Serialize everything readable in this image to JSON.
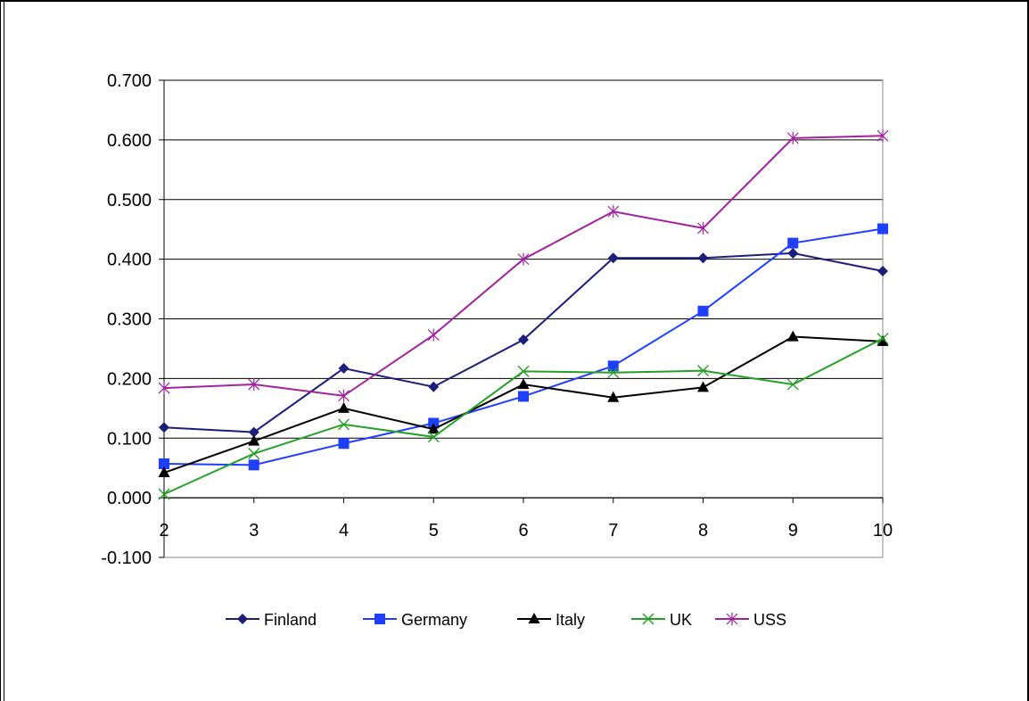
{
  "chart_data": {
    "type": "line",
    "title": "",
    "xlabel": "",
    "ylabel": "",
    "x": [
      2,
      3,
      4,
      5,
      6,
      7,
      8,
      9,
      10
    ],
    "ylim": [
      -0.1,
      0.7
    ],
    "yticks": [
      "-0.100",
      "0.000",
      "0.100",
      "0.200",
      "0.300",
      "0.400",
      "0.500",
      "0.600",
      "0.700"
    ],
    "xticks": [
      "2",
      "3",
      "4",
      "5",
      "6",
      "7",
      "8",
      "9",
      "10"
    ],
    "grid": true,
    "legend_position": "bottom",
    "series": [
      {
        "name": "Finland",
        "color": "#1b1f7a",
        "marker": "diamond",
        "values": [
          0.118,
          0.11,
          0.217,
          0.186,
          0.265,
          0.402,
          0.402,
          0.41,
          0.38
        ]
      },
      {
        "name": "Germany",
        "color": "#1f3fff",
        "marker": "square",
        "values": [
          0.057,
          0.055,
          0.091,
          0.125,
          0.17,
          0.221,
          0.313,
          0.427,
          0.451
        ]
      },
      {
        "name": "Italy",
        "color": "#000000",
        "marker": "triangle",
        "values": [
          0.042,
          0.095,
          0.15,
          0.115,
          0.19,
          0.168,
          0.185,
          0.27,
          0.262
        ]
      },
      {
        "name": "UK",
        "color": "#24a024",
        "marker": "x",
        "values": [
          0.006,
          0.074,
          0.123,
          0.102,
          0.212,
          0.21,
          0.213,
          0.19,
          0.267
        ]
      },
      {
        "name": "USS",
        "color": "#a0229f",
        "marker": "star",
        "values": [
          0.184,
          0.19,
          0.171,
          0.273,
          0.4,
          0.48,
          0.452,
          0.603,
          0.607
        ]
      }
    ]
  }
}
